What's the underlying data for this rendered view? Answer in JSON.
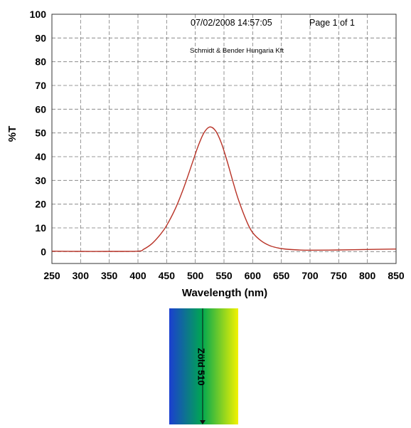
{
  "header": {
    "datetime": "07/02/2008 14:57:05",
    "page": "Page 1 of 1",
    "company": "Schmidt & Bender Hungaria Kft"
  },
  "chart_data": {
    "type": "line",
    "xlabel": "Wavelength (nm)",
    "ylabel": "%T",
    "xlim": [
      250,
      850
    ],
    "ylim": [
      -5,
      100
    ],
    "x_ticks": [
      250,
      300,
      350,
      400,
      450,
      500,
      550,
      600,
      650,
      700,
      750,
      800,
      850
    ],
    "y_ticks": [
      0,
      10,
      20,
      30,
      40,
      50,
      60,
      70,
      80,
      90,
      100
    ],
    "grid": true,
    "series": [
      {
        "color": "#b83226",
        "x": [
          250,
          300,
          350,
          400,
          410,
          425,
          440,
          450,
          465,
          480,
          495,
          505,
          515,
          525,
          535,
          545,
          555,
          565,
          575,
          590,
          600,
          615,
          630,
          645,
          660,
          680,
          700,
          750,
          800,
          850
        ],
        "y": [
          0.2,
          0.1,
          0.1,
          0.2,
          1.0,
          3.5,
          7.5,
          11.0,
          18.0,
          27.0,
          37.5,
          44.5,
          50.0,
          52.5,
          51.0,
          46.0,
          38.5,
          30.0,
          22.0,
          12.5,
          8.0,
          4.5,
          2.5,
          1.5,
          1.0,
          0.7,
          0.6,
          0.7,
          0.9,
          1.1
        ]
      }
    ]
  },
  "swatch": {
    "label": "Zöld 510",
    "colors": [
      "#1b3fd0",
      "#00a850",
      "#f2f200"
    ]
  }
}
